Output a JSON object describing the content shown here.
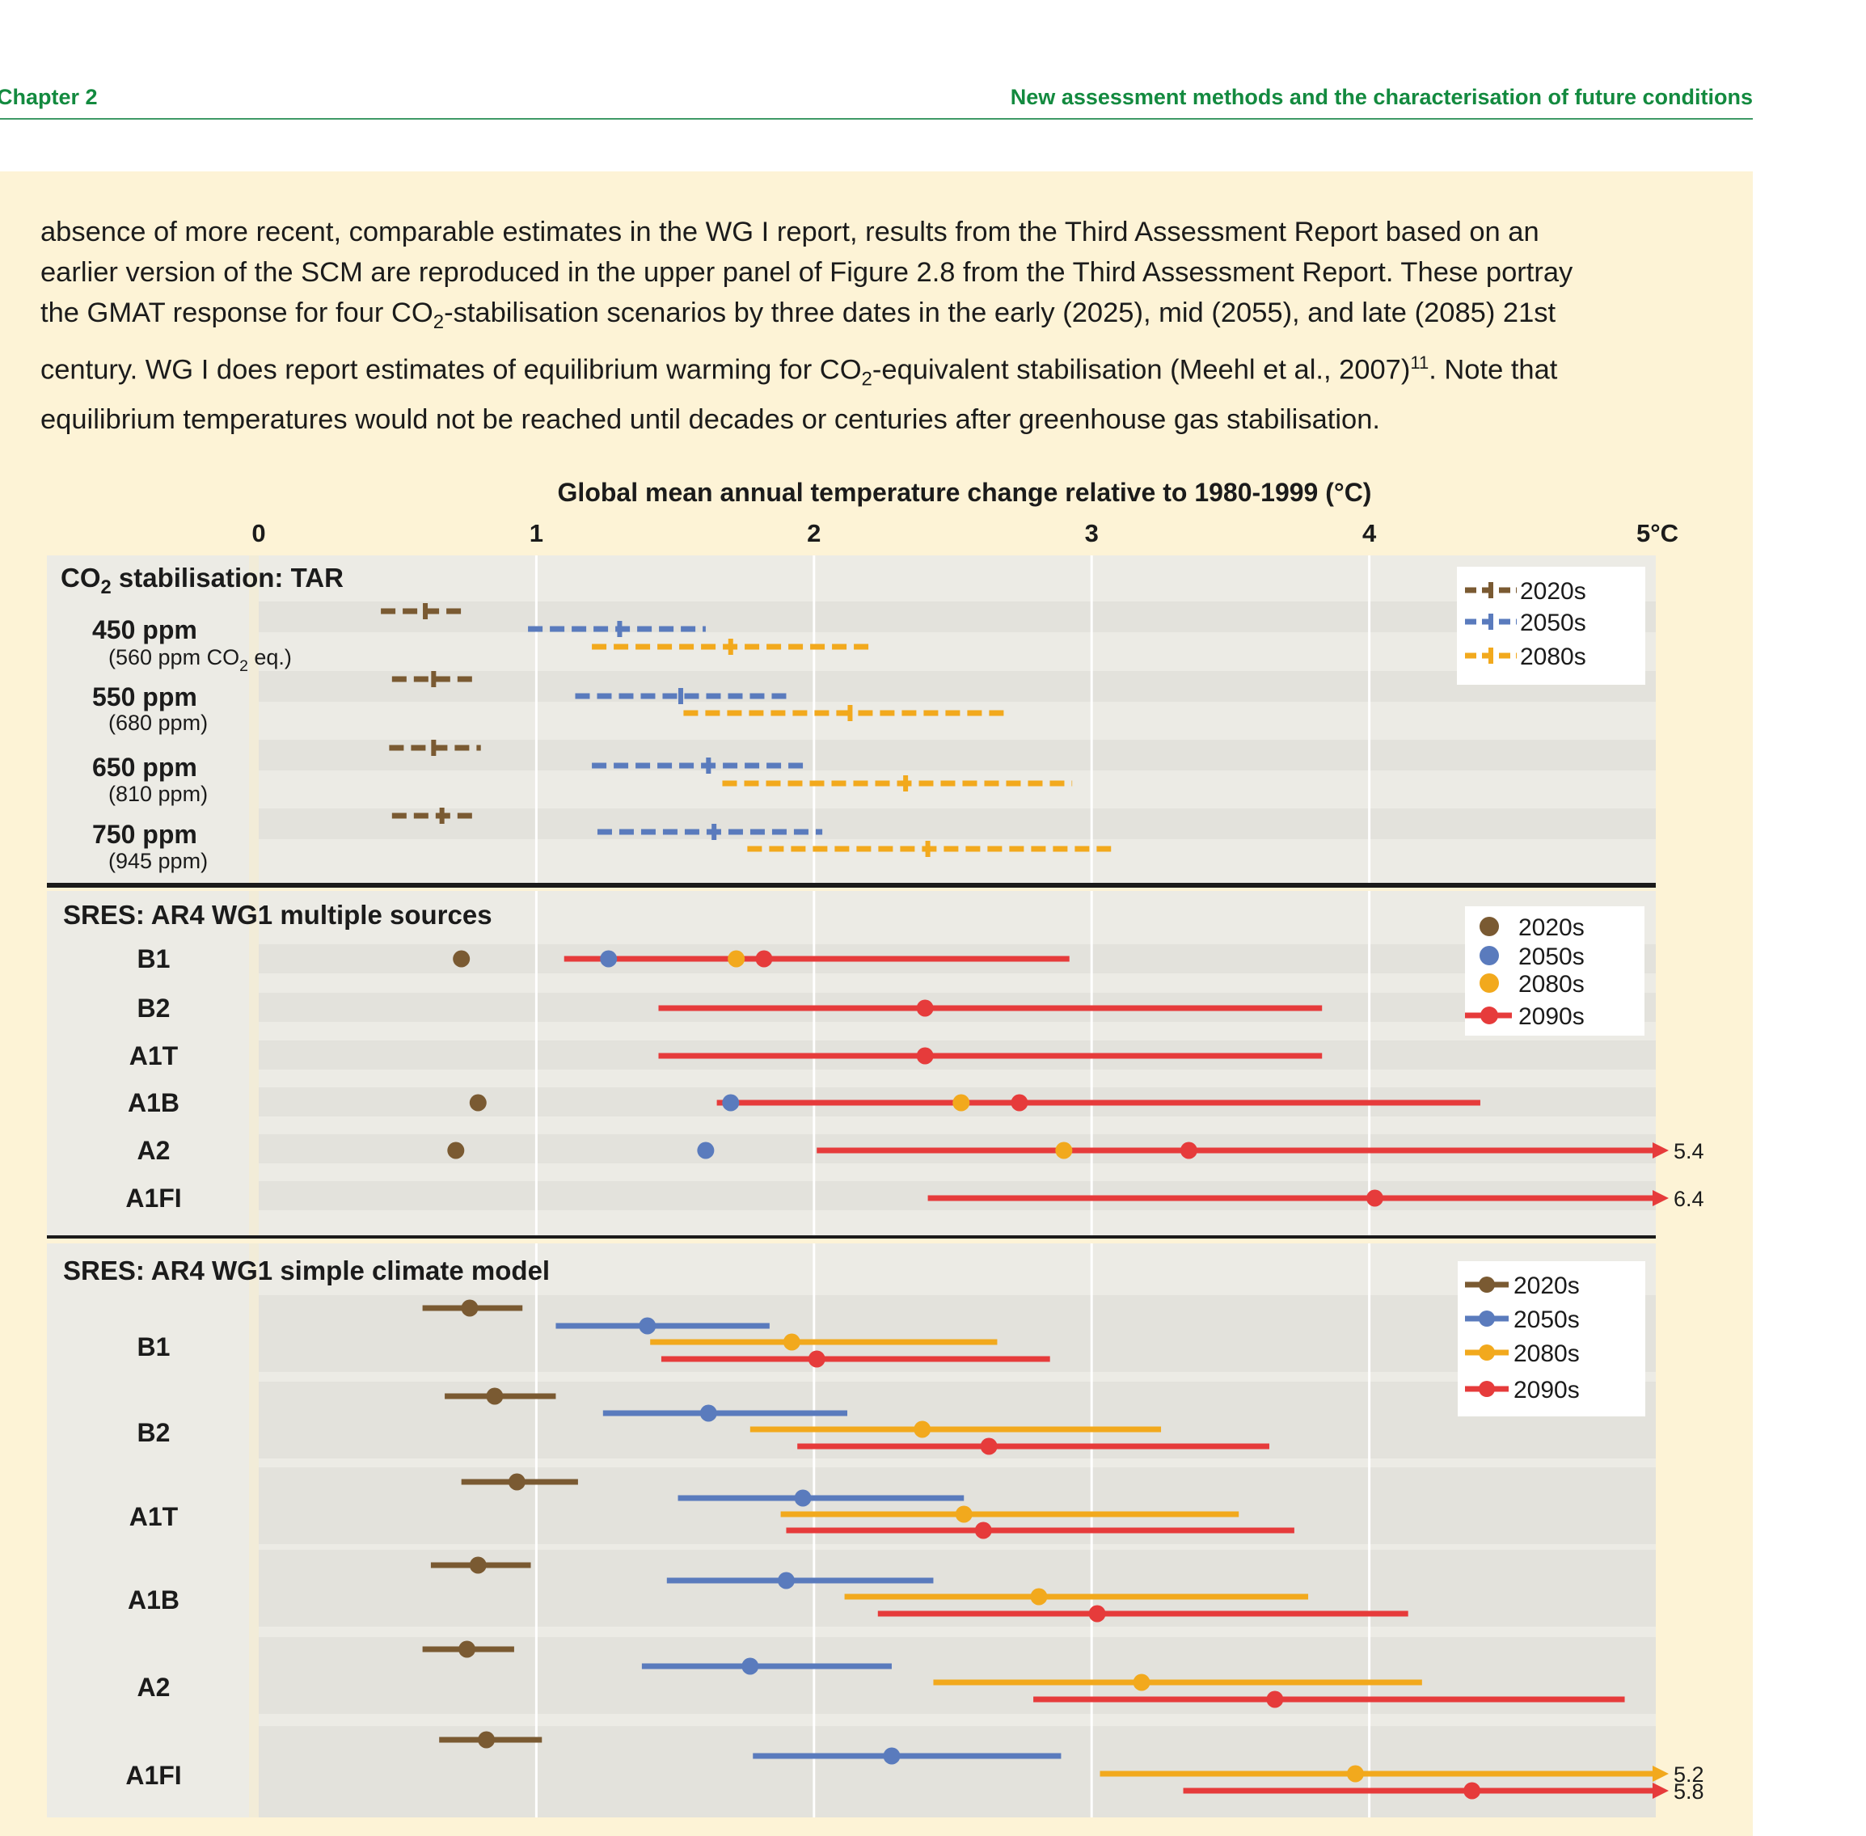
{
  "header": {
    "chapter": "Chapter 2",
    "section": "New assessment methods and the characterisation of future conditions"
  },
  "body_text": {
    "line1": "absence of more recent, comparable estimates in the WG I report, results from the Third Assessment Report based on an",
    "line2": "earlier version of the SCM are reproduced in the upper panel of Figure 2.8 from the Third Assessment Report. These portray",
    "line3_a": "the GMAT response for four CO",
    "line3_sub": "2",
    "line3_b": "-stabilisation scenarios by three dates in the early (2025), mid (2055), and late (2085) 21st",
    "line4_a": "century. WG I does report estimates of equilibrium warming for CO",
    "line4_sub": "2",
    "line4_b": "-equivalent stabilisation (Meehl et al., 2007)",
    "line4_sup": "11",
    "line4_c": ". Note that",
    "line5": "equilibrium temperatures would not be reached until decades or centuries after greenhouse gas stabilisation."
  },
  "colors": {
    "c2020": "#7a5a32",
    "c2050": "#5a7bbd",
    "c2080": "#f2a91d",
    "c2090": "#e63b3b",
    "band_light": "#ecebe5",
    "band_dark": "#e3e2dc",
    "label_col": "#ecebe4"
  },
  "chart_data": {
    "type": "range-dot",
    "title": "Global mean annual temperature change relative to 1980-1999 (°C)",
    "x_ticks": [
      "0",
      "1",
      "2",
      "3",
      "4",
      "5°C"
    ],
    "xlim": [
      0,
      5
    ],
    "panels": [
      {
        "title_a": "CO",
        "title_sub": "2",
        "title_b": " stabilisation: TAR",
        "style": "dashed",
        "legend": [
          "2020s",
          "2050s",
          "2080s"
        ],
        "rows": [
          {
            "label": "450 ppm",
            "sub_a": "(560 ppm CO",
            "sub_sub": "2",
            "sub_b": " eq.)",
            "series": [
              {
                "period": "2020s",
                "low": 0.44,
                "mid": 0.6,
                "high": 0.75
              },
              {
                "period": "2050s",
                "low": 0.97,
                "mid": 1.3,
                "high": 1.61
              },
              {
                "period": "2080s",
                "low": 1.2,
                "mid": 1.7,
                "high": 2.2
              }
            ]
          },
          {
            "label": "550 ppm",
            "sub_a": "(680 ppm)",
            "series": [
              {
                "period": "2020s",
                "low": 0.48,
                "mid": 0.63,
                "high": 0.79
              },
              {
                "period": "2050s",
                "low": 1.14,
                "mid": 1.52,
                "high": 1.9
              },
              {
                "period": "2080s",
                "low": 1.53,
                "mid": 2.13,
                "high": 2.7
              }
            ]
          },
          {
            "label": "650 ppm",
            "sub_a": "(810 ppm)",
            "series": [
              {
                "period": "2020s",
                "low": 0.47,
                "mid": 0.63,
                "high": 0.8
              },
              {
                "period": "2050s",
                "low": 1.2,
                "mid": 1.62,
                "high": 1.98
              },
              {
                "period": "2080s",
                "low": 1.67,
                "mid": 2.33,
                "high": 2.93
              }
            ]
          },
          {
            "label": "750 ppm",
            "sub_a": "(945 ppm)",
            "series": [
              {
                "period": "2020s",
                "low": 0.48,
                "mid": 0.66,
                "high": 0.79
              },
              {
                "period": "2050s",
                "low": 1.22,
                "mid": 1.64,
                "high": 2.03
              },
              {
                "period": "2080s",
                "low": 1.76,
                "mid": 2.41,
                "high": 3.07
              }
            ]
          }
        ]
      },
      {
        "title_a": "SRES: AR4 WG1 multiple sources",
        "style": "dots",
        "legend": [
          "2020s",
          "2050s",
          "2080s",
          "2090s"
        ],
        "rows": [
          {
            "label": "B1",
            "points": {
              "2020s": 0.73,
              "2050s": 1.26,
              "2080s": 1.72
            },
            "range_2090s": {
              "low": 1.1,
              "mid": 1.82,
              "high": 2.92
            }
          },
          {
            "label": "B2",
            "points": {},
            "range_2090s": {
              "low": 1.44,
              "mid": 2.4,
              "high": 3.83
            }
          },
          {
            "label": "A1T",
            "points": {},
            "range_2090s": {
              "low": 1.44,
              "mid": 2.4,
              "high": 3.83
            }
          },
          {
            "label": "A1B",
            "points": {
              "2020s": 0.79,
              "2050s": 1.7,
              "2080s": 2.53
            },
            "range_2090s": {
              "low": 1.65,
              "mid": 2.74,
              "high": 4.4
            }
          },
          {
            "label": "A2",
            "points": {
              "2020s": 0.71,
              "2050s": 1.61,
              "2080s": 2.9
            },
            "range_2090s": {
              "low": 2.01,
              "mid": 3.35,
              "high": 5.4
            },
            "arrow_label": "5.4"
          },
          {
            "label": "A1FI",
            "points": {},
            "range_2090s": {
              "low": 2.41,
              "mid": 4.02,
              "high": 6.4
            },
            "arrow_label": "6.4"
          }
        ]
      },
      {
        "title_a": "SRES: AR4 WG1 simple climate model",
        "style": "ranges",
        "legend": [
          "2020s",
          "2050s",
          "2080s",
          "2090s"
        ],
        "rows": [
          {
            "label": "B1",
            "series": [
              {
                "period": "2020s",
                "low": 0.59,
                "mid": 0.76,
                "high": 0.95
              },
              {
                "period": "2050s",
                "low": 1.07,
                "mid": 1.4,
                "high": 1.84
              },
              {
                "period": "2080s",
                "low": 1.41,
                "mid": 1.92,
                "high": 2.66
              },
              {
                "period": "2090s",
                "low": 1.45,
                "mid": 2.01,
                "high": 2.85
              }
            ]
          },
          {
            "label": "B2",
            "series": [
              {
                "period": "2020s",
                "low": 0.67,
                "mid": 0.85,
                "high": 1.07
              },
              {
                "period": "2050s",
                "low": 1.24,
                "mid": 1.62,
                "high": 2.12
              },
              {
                "period": "2080s",
                "low": 1.77,
                "mid": 2.39,
                "high": 3.25
              },
              {
                "period": "2090s",
                "low": 1.94,
                "mid": 2.63,
                "high": 3.64
              }
            ]
          },
          {
            "label": "A1T",
            "series": [
              {
                "period": "2020s",
                "low": 0.73,
                "mid": 0.93,
                "high": 1.15
              },
              {
                "period": "2050s",
                "low": 1.51,
                "mid": 1.96,
                "high": 2.54
              },
              {
                "period": "2080s",
                "low": 1.88,
                "mid": 2.54,
                "high": 3.53
              },
              {
                "period": "2090s",
                "low": 1.9,
                "mid": 2.61,
                "high": 3.73
              }
            ]
          },
          {
            "label": "A1B",
            "series": [
              {
                "period": "2020s",
                "low": 0.62,
                "mid": 0.79,
                "high": 0.98
              },
              {
                "period": "2050s",
                "low": 1.47,
                "mid": 1.9,
                "high": 2.43
              },
              {
                "period": "2080s",
                "low": 2.11,
                "mid": 2.81,
                "high": 3.78
              },
              {
                "period": "2090s",
                "low": 2.23,
                "mid": 3.02,
                "high": 4.14
              }
            ]
          },
          {
            "label": "A2",
            "series": [
              {
                "period": "2020s",
                "low": 0.59,
                "mid": 0.75,
                "high": 0.92
              },
              {
                "period": "2050s",
                "low": 1.38,
                "mid": 1.77,
                "high": 2.28
              },
              {
                "period": "2080s",
                "low": 2.43,
                "mid": 3.18,
                "high": 4.19
              },
              {
                "period": "2090s",
                "low": 2.79,
                "mid": 3.66,
                "high": 4.92
              }
            ]
          },
          {
            "label": "A1FI",
            "series": [
              {
                "period": "2020s",
                "low": 0.65,
                "mid": 0.82,
                "high": 1.02
              },
              {
                "period": "2050s",
                "low": 1.78,
                "mid": 2.28,
                "high": 2.89
              },
              {
                "period": "2080s",
                "low": 3.03,
                "mid": 3.95,
                "high": 5.2,
                "arrow_label": "5.2"
              },
              {
                "period": "2090s",
                "low": 3.33,
                "mid": 4.37,
                "high": 5.8,
                "arrow_label": "5.8"
              }
            ]
          }
        ]
      }
    ]
  }
}
